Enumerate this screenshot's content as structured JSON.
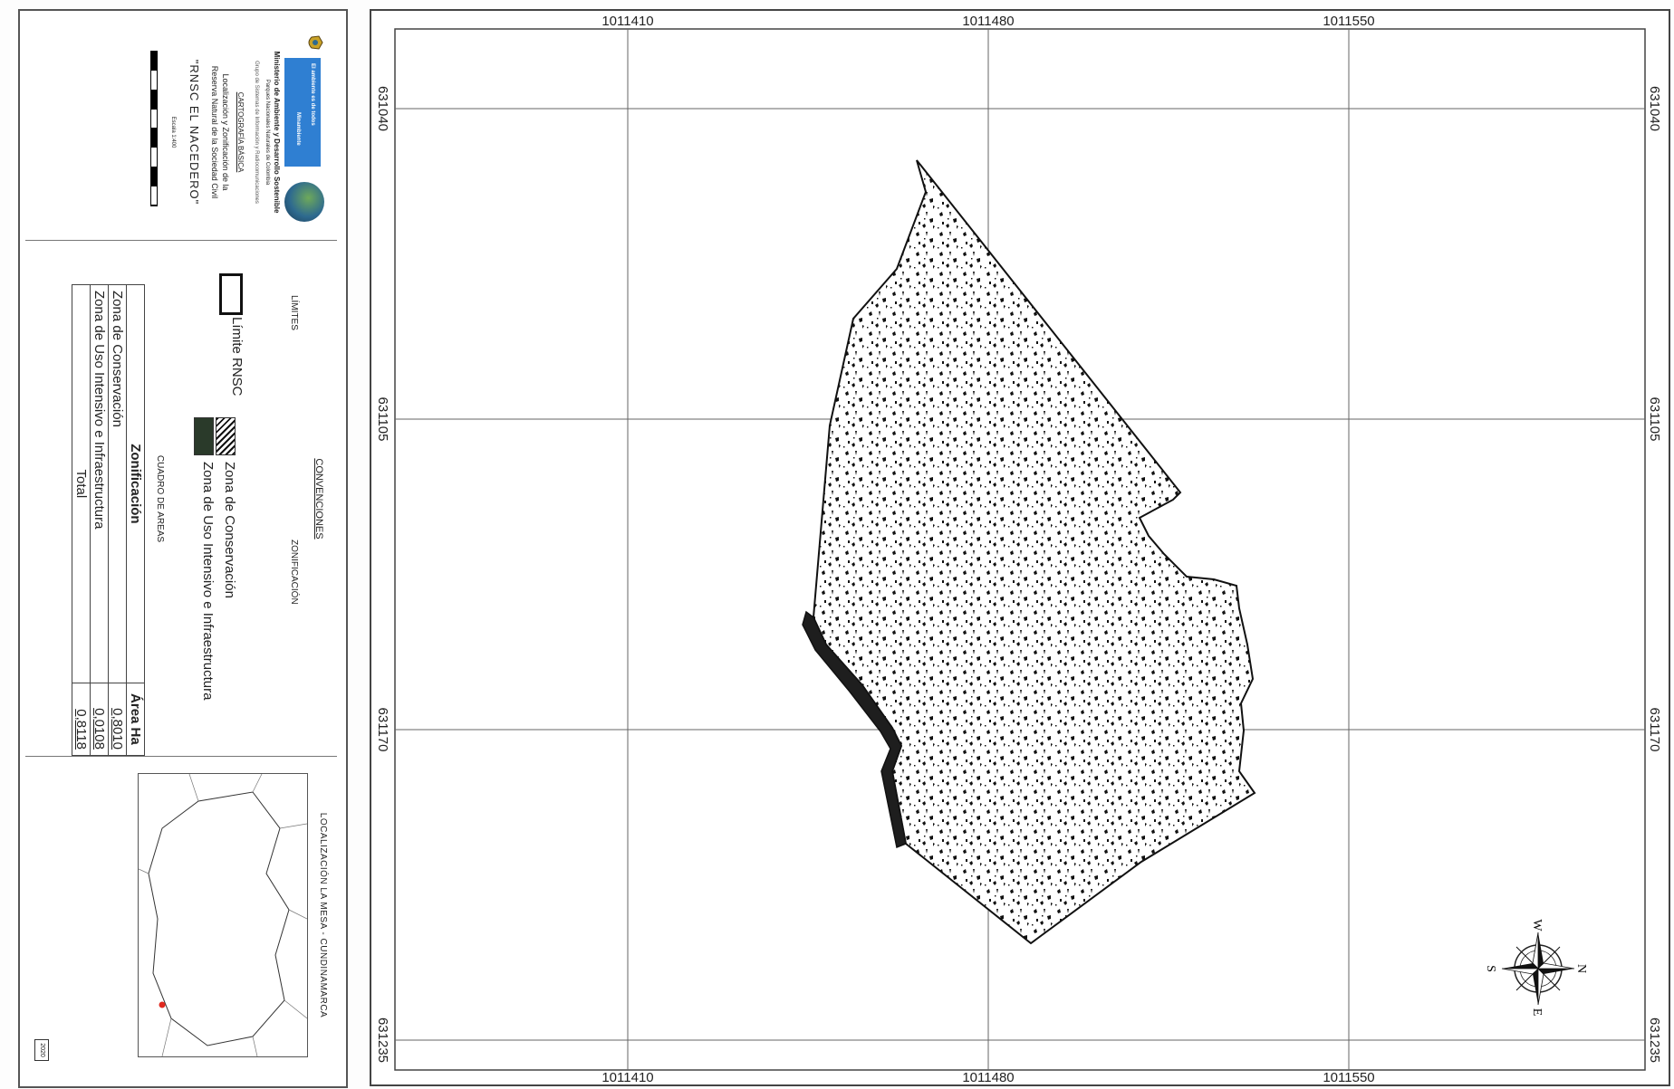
{
  "legend": {
    "logo_text_1": "El ambiente es de todos",
    "logo_text_2": "Minambiente",
    "ministry": "Ministerio de Ambiente y Desarrollo Sostenible",
    "parks": "Parques Nacionales Naturales de Colombia",
    "sig_group": "Grupo de Sistemas de Información y Radiocomunicaciones",
    "cartography": "CARTOGRAFÍA BÁSICA",
    "title_line1": "Localización y Zonificación de la",
    "title_line2": "Reserva Natural de la Sociedad Civil",
    "reserve_name": "\"RNSC EL NACEDERO\"",
    "scale": "Escala 1:400",
    "conventions_title": "CONVENCIONES",
    "limits_title": "LÍMITES",
    "zoning_title": "ZONIFICACIÓN",
    "limit_label": "Límite RNSC",
    "zone_conservation": "Zona de Conservación",
    "zone_intensive": "Zona de Uso Intensivo e Infraestructura",
    "areas_title": "CUADRO DE AREAS",
    "table_headers": [
      "Zonificación",
      "Área Ha"
    ],
    "table_rows": [
      {
        "name": "Zona de Conservación",
        "area": "0,8010"
      },
      {
        "name": "Zona de Uso Intensivo e Infraestructura",
        "area": "0,0108"
      },
      {
        "name": "Total",
        "area": "0,8118"
      }
    ],
    "location_title": "LOCALIZACIÓN   LA MESA - CUNDINAMARCA",
    "year": "2020",
    "colors": {
      "logo_blue": "#2f7fd2",
      "location_dot": "#e0281e"
    }
  },
  "map": {
    "x_ticks": [
      "1011410",
      "1011480",
      "1011550"
    ],
    "y_ticks": [
      "631040",
      "631105",
      "631170",
      "631235"
    ],
    "compass_labels": {
      "n": "N",
      "s": "S",
      "e": "E",
      "w": "W"
    }
  }
}
